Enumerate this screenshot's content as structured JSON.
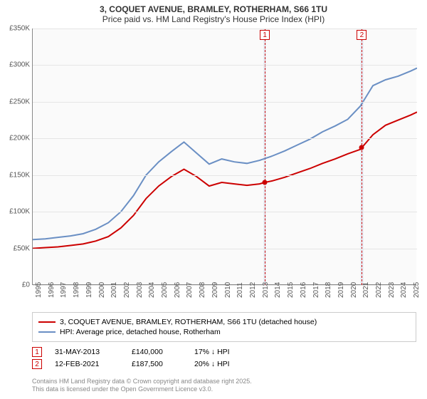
{
  "title_line1": "3, COQUET AVENUE, BRAMLEY, ROTHERHAM, S66 1TU",
  "title_line2": "Price paid vs. HM Land Registry's House Price Index (HPI)",
  "chart": {
    "type": "line",
    "background_color": "#fafafa",
    "grid_color": "#e5e5e5",
    "axis_color": "#888888",
    "xlim": [
      1995,
      2025.5
    ],
    "ylim": [
      0,
      350000
    ],
    "ytick_step": 50000,
    "ytick_labels": [
      "£0",
      "£50K",
      "£100K",
      "£150K",
      "£200K",
      "£250K",
      "£300K",
      "£350K"
    ],
    "xticks": [
      1995,
      1996,
      1997,
      1998,
      1999,
      2000,
      2001,
      2002,
      2003,
      2004,
      2005,
      2006,
      2007,
      2008,
      2009,
      2010,
      2011,
      2012,
      2013,
      2014,
      2015,
      2016,
      2017,
      2018,
      2019,
      2020,
      2021,
      2022,
      2023,
      2024,
      2025
    ],
    "label_fontsize": 10,
    "line_width": 2,
    "series": [
      {
        "name": "property",
        "label": "3, COQUET AVENUE, BRAMLEY, ROTHERHAM, S66 1TU (detached house)",
        "color": "#cc0000",
        "points": [
          [
            1995,
            50000
          ],
          [
            1996,
            51000
          ],
          [
            1997,
            52000
          ],
          [
            1998,
            54000
          ],
          [
            1999,
            56000
          ],
          [
            2000,
            60000
          ],
          [
            2001,
            66000
          ],
          [
            2002,
            78000
          ],
          [
            2003,
            95000
          ],
          [
            2004,
            118000
          ],
          [
            2005,
            135000
          ],
          [
            2006,
            148000
          ],
          [
            2007,
            158000
          ],
          [
            2008,
            148000
          ],
          [
            2009,
            135000
          ],
          [
            2010,
            140000
          ],
          [
            2011,
            138000
          ],
          [
            2012,
            136000
          ],
          [
            2013,
            138000
          ],
          [
            2013.42,
            140000
          ],
          [
            2014,
            142000
          ],
          [
            2015,
            147000
          ],
          [
            2016,
            153000
          ],
          [
            2017,
            159000
          ],
          [
            2018,
            166000
          ],
          [
            2019,
            172000
          ],
          [
            2020,
            179000
          ],
          [
            2021,
            185000
          ],
          [
            2021.12,
            187500
          ],
          [
            2022,
            205000
          ],
          [
            2023,
            218000
          ],
          [
            2024,
            225000
          ],
          [
            2025,
            232000
          ],
          [
            2025.5,
            236000
          ]
        ]
      },
      {
        "name": "hpi",
        "label": "HPI: Average price, detached house, Rotherham",
        "color": "#6a8fc4",
        "points": [
          [
            1995,
            62000
          ],
          [
            1996,
            63000
          ],
          [
            1997,
            65000
          ],
          [
            1998,
            67000
          ],
          [
            1999,
            70000
          ],
          [
            2000,
            76000
          ],
          [
            2001,
            85000
          ],
          [
            2002,
            100000
          ],
          [
            2003,
            122000
          ],
          [
            2004,
            150000
          ],
          [
            2005,
            168000
          ],
          [
            2006,
            182000
          ],
          [
            2007,
            195000
          ],
          [
            2008,
            180000
          ],
          [
            2009,
            165000
          ],
          [
            2010,
            172000
          ],
          [
            2011,
            168000
          ],
          [
            2012,
            166000
          ],
          [
            2013,
            170000
          ],
          [
            2014,
            176000
          ],
          [
            2015,
            183000
          ],
          [
            2016,
            191000
          ],
          [
            2017,
            199000
          ],
          [
            2018,
            209000
          ],
          [
            2019,
            217000
          ],
          [
            2020,
            226000
          ],
          [
            2021,
            244000
          ],
          [
            2022,
            272000
          ],
          [
            2023,
            280000
          ],
          [
            2024,
            285000
          ],
          [
            2025,
            292000
          ],
          [
            2025.5,
            296000
          ]
        ]
      }
    ],
    "annotation_bands": [
      {
        "x": 2013.42,
        "width_years": 0.25
      },
      {
        "x": 2021.12,
        "width_years": 0.25
      }
    ],
    "data_markers": [
      {
        "label": "1",
        "x": 2013.42,
        "y": 140000,
        "color": "#cc0000"
      },
      {
        "label": "2",
        "x": 2021.12,
        "y": 187500,
        "color": "#cc0000"
      }
    ]
  },
  "legend": {
    "items": [
      {
        "color": "#cc0000",
        "text_key": "chart.series.0.label"
      },
      {
        "color": "#6a8fc4",
        "text_key": "chart.series.1.label"
      }
    ]
  },
  "sale_points": [
    {
      "marker": "1",
      "date": "31-MAY-2013",
      "price": "£140,000",
      "delta": "17% ↓ HPI"
    },
    {
      "marker": "2",
      "date": "12-FEB-2021",
      "price": "£187,500",
      "delta": "20% ↓ HPI"
    }
  ],
  "footer_line1": "Contains HM Land Registry data © Crown copyright and database right 2025.",
  "footer_line2": "This data is licensed under the Open Government Licence v3.0."
}
